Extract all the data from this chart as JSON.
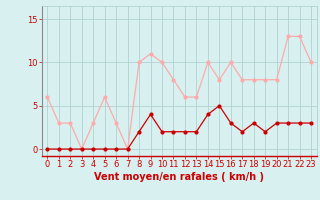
{
  "x": [
    0,
    1,
    2,
    3,
    4,
    5,
    6,
    7,
    8,
    9,
    10,
    11,
    12,
    13,
    14,
    15,
    16,
    17,
    18,
    19,
    20,
    21,
    22,
    23
  ],
  "avg_wind": [
    0,
    0,
    0,
    0,
    0,
    0,
    0,
    0,
    2,
    4,
    2,
    2,
    2,
    2,
    4,
    5,
    3,
    2,
    3,
    2,
    3,
    3,
    3,
    3
  ],
  "gust_wind": [
    6,
    3,
    3,
    0,
    3,
    6,
    3,
    0,
    10,
    11,
    10,
    8,
    6,
    6,
    10,
    8,
    10,
    8,
    8,
    8,
    8,
    13,
    13,
    10
  ],
  "avg_color": "#cc0000",
  "gust_color": "#ffaaaa",
  "bg_color": "#d8f0f0",
  "grid_color": "#aacccc",
  "xlabel": "Vent moyen/en rafales ( km/h )",
  "yticks": [
    0,
    5,
    10,
    15
  ],
  "ylim": [
    -0.8,
    16.5
  ],
  "xlim": [
    -0.5,
    23.5
  ],
  "tick_color": "#cc0000",
  "label_color": "#cc0000",
  "axis_fontsize": 6,
  "xlabel_fontsize": 7,
  "marker_size": 2,
  "line_width": 0.9
}
